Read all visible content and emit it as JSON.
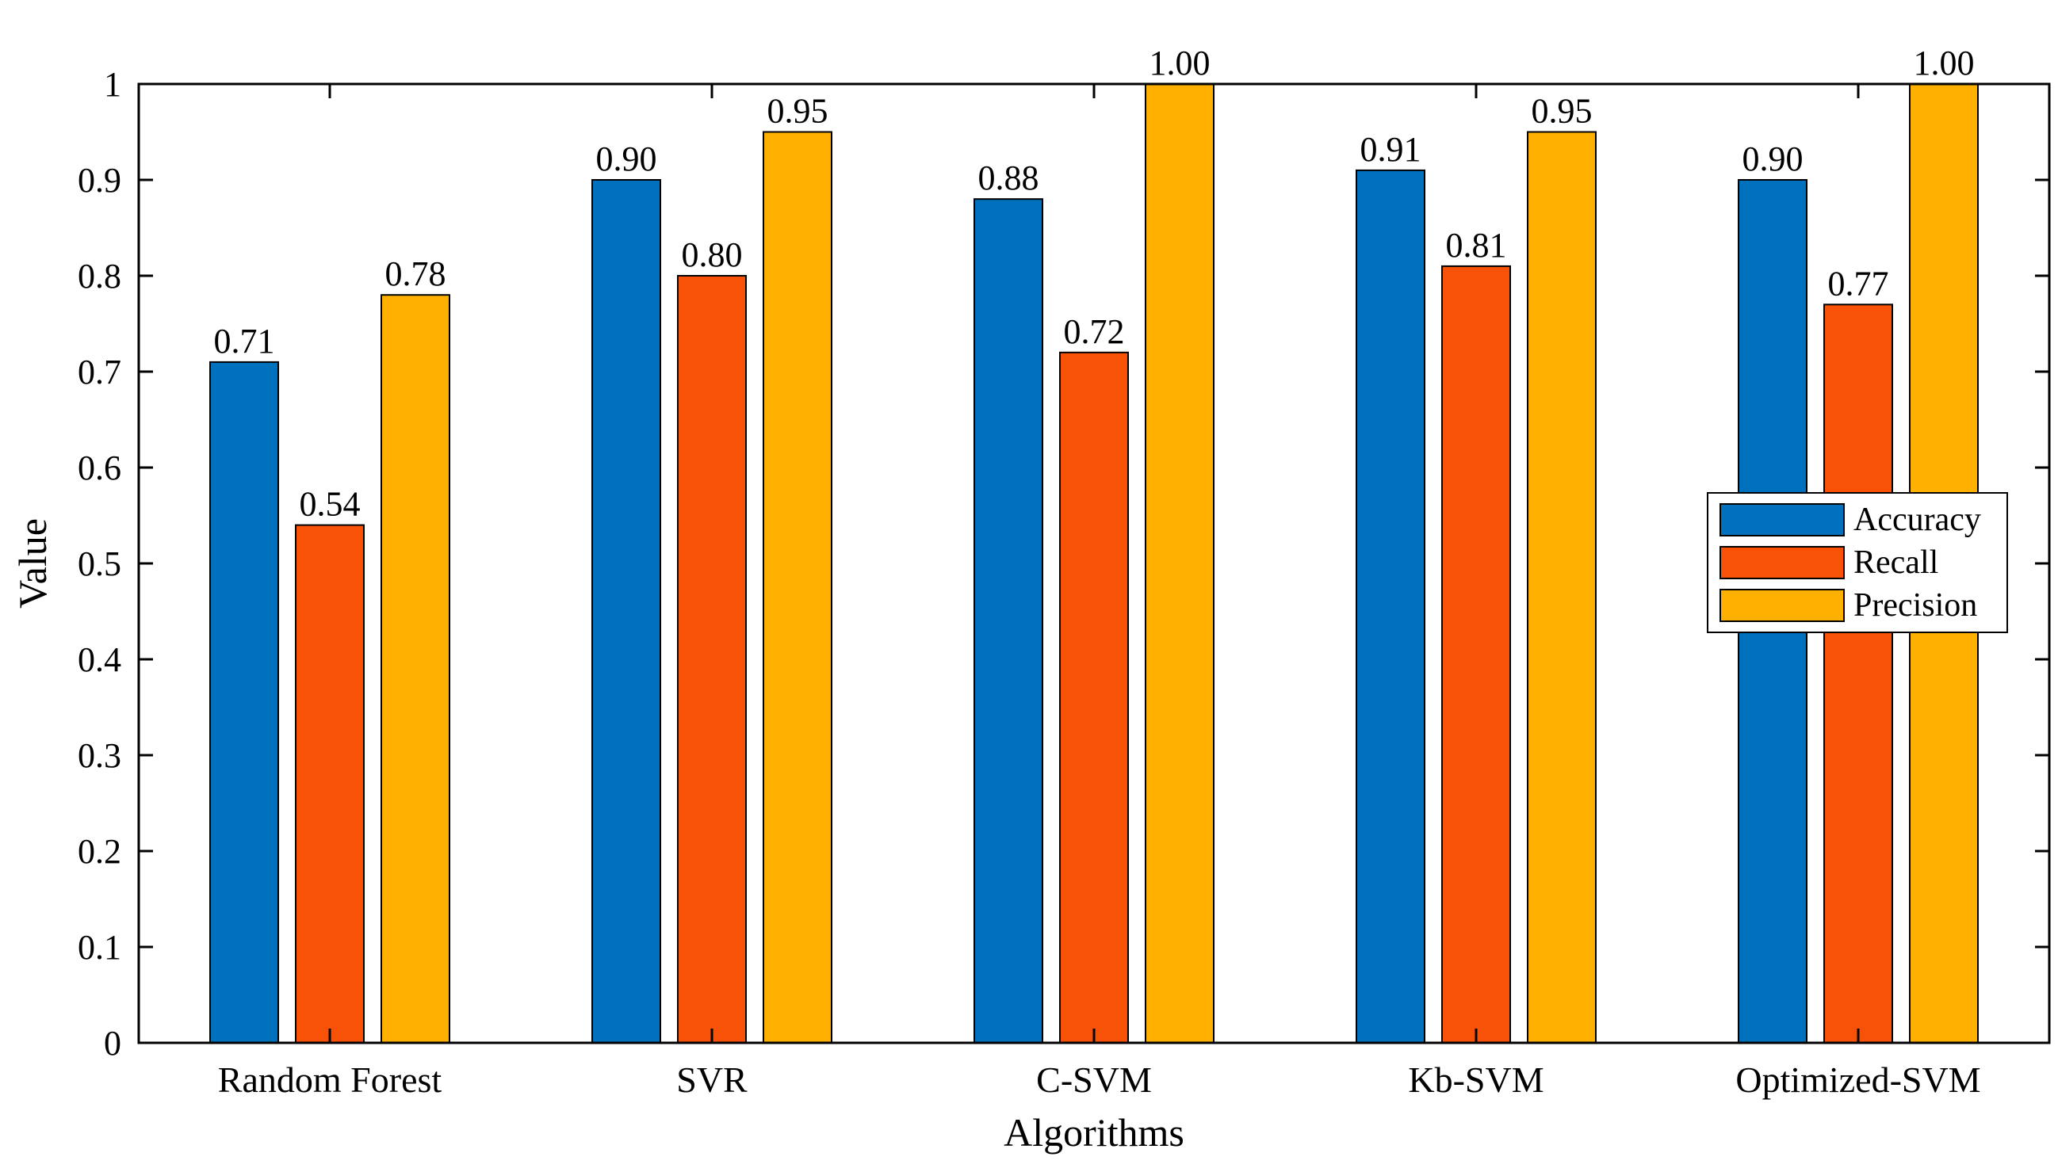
{
  "chart_data": {
    "type": "bar",
    "title": "",
    "xlabel": "Algorithms",
    "ylabel": "Value",
    "ylim": [
      0,
      1
    ],
    "yticks": [
      0,
      0.1,
      0.2,
      0.3,
      0.4,
      0.5,
      0.6,
      0.7,
      0.8,
      0.9,
      1
    ],
    "ytick_labels": [
      "0",
      "0.1",
      "0.2",
      "0.3",
      "0.4",
      "0.5",
      "0.6",
      "0.7",
      "0.8",
      "0.9",
      "1"
    ],
    "categories": [
      "Random Forest",
      "SVR",
      "C-SVM",
      "Kb-SVM",
      "Optimized-SVM"
    ],
    "series": [
      {
        "name": "Accuracy",
        "color": "#0072BD",
        "values": [
          0.71,
          0.9,
          0.88,
          0.91,
          0.9
        ],
        "labels": [
          "0.71",
          "0.90",
          "0.88",
          "0.91",
          "0.90"
        ]
      },
      {
        "name": "Recall",
        "color": "#F75208",
        "values": [
          0.54,
          0.8,
          0.72,
          0.81,
          0.77
        ],
        "labels": [
          "0.54",
          "0.80",
          "0.72",
          "0.81",
          "0.77"
        ]
      },
      {
        "name": "Precision",
        "color": "#FFB000",
        "values": [
          0.78,
          0.95,
          1.0,
          0.95,
          1.0
        ],
        "labels": [
          "0.78",
          "0.95",
          "1.00",
          "0.95",
          "1.00"
        ]
      }
    ],
    "grid": false,
    "legend": "right"
  }
}
